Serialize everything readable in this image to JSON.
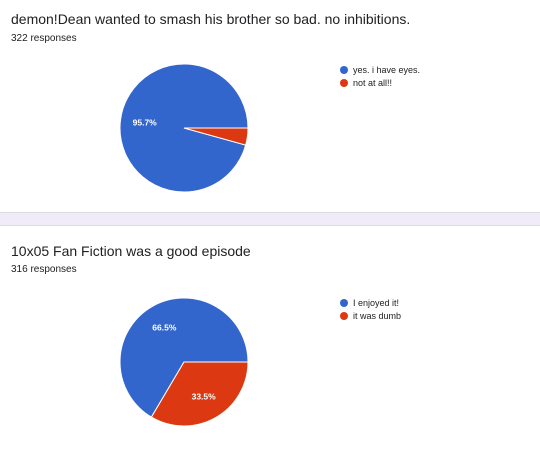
{
  "charts": [
    {
      "title": "demon!Dean wanted to smash his brother so bad. no inhibitions.",
      "responses": "322 responses"
    },
    {
      "title": "10x05 Fan Fiction was a good episode",
      "responses": "316 responses"
    }
  ],
  "chart_data": [
    {
      "type": "pie",
      "title": "demon!Dean wanted to smash his brother so bad. no inhibitions.",
      "categories": [
        "yes. i have eyes.",
        "not at all!!"
      ],
      "values": [
        95.7,
        4.3
      ],
      "colors": [
        "#3366cc",
        "#dc3912"
      ],
      "data_labels": [
        "95.7%",
        ""
      ],
      "legend_position": "right"
    },
    {
      "type": "pie",
      "title": "10x05 Fan Fiction was a good episode",
      "categories": [
        "I enjoyed it!",
        "it was dumb"
      ],
      "values": [
        66.5,
        33.5
      ],
      "colors": [
        "#3366cc",
        "#dc3912"
      ],
      "data_labels": [
        "66.5%",
        "33.5%"
      ],
      "legend_position": "right"
    }
  ]
}
